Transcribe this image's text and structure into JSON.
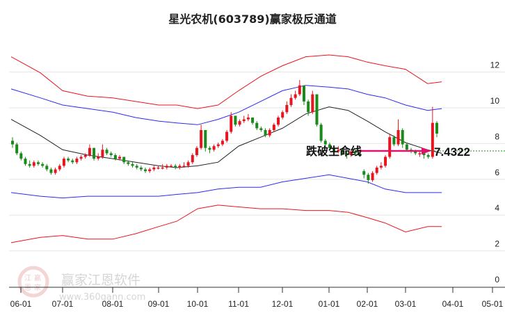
{
  "title": "星光农机(603789)赢家极反通道",
  "watermark": {
    "brand": "赢家江恩软件",
    "url": "www.360gann.com",
    "logo_chars": "江赢恩家"
  },
  "colors": {
    "up": "#e8141e",
    "down": "#1a8a1a",
    "outer_band": "#e8141e",
    "inner_band": "#2a2af0",
    "mid_line": "#222222",
    "arrow": "#e0106e",
    "support_line": "#1a8a1a"
  },
  "chart_data": {
    "type": "candlestick",
    "title": "星光农机(603789)赢家极反通道",
    "x_ticks": [
      "06-01",
      "07-01",
      "08-01",
      "09-01",
      "10-01",
      "11-01",
      "12-01",
      "01-01",
      "02-01",
      "03-01",
      "04-01",
      "05-01"
    ],
    "y_ticks": [
      0,
      2,
      4,
      6,
      8,
      10,
      12
    ],
    "ylim": [
      0,
      13
    ],
    "y_axis_position": "right",
    "grid": "horizontal",
    "candle_fields": [
      "open",
      "close",
      "high",
      "low"
    ],
    "candles": [
      [
        8.0,
        7.8,
        8.2,
        7.6
      ],
      [
        7.8,
        7.3,
        7.9,
        7.2
      ],
      [
        7.3,
        7.0,
        7.4,
        6.9
      ],
      [
        7.0,
        6.7,
        7.1,
        6.6
      ],
      [
        6.7,
        6.6,
        6.9,
        6.5
      ],
      [
        6.6,
        6.8,
        6.9,
        6.5
      ],
      [
        6.8,
        6.7,
        6.9,
        6.6
      ],
      [
        6.7,
        6.6,
        6.8,
        6.5
      ],
      [
        6.6,
        6.4,
        6.7,
        6.3
      ],
      [
        6.4,
        6.2,
        6.5,
        6.1
      ],
      [
        6.2,
        6.4,
        6.5,
        6.1
      ],
      [
        6.4,
        6.6,
        6.7,
        6.3
      ],
      [
        6.6,
        7.0,
        7.1,
        6.5
      ],
      [
        7.0,
        6.9,
        7.1,
        6.8
      ],
      [
        6.9,
        6.8,
        7.0,
        6.7
      ],
      [
        6.8,
        7.0,
        7.1,
        6.7
      ],
      [
        7.0,
        7.1,
        7.2,
        6.9
      ],
      [
        7.1,
        7.2,
        7.3,
        7.0
      ],
      [
        7.2,
        7.6,
        7.8,
        7.1
      ],
      [
        7.6,
        7.0,
        7.6,
        6.9
      ],
      [
        7.0,
        7.1,
        7.3,
        6.9
      ],
      [
        7.1,
        7.5,
        7.8,
        7.0
      ],
      [
        7.5,
        7.3,
        7.6,
        7.2
      ],
      [
        7.3,
        7.2,
        7.4,
        7.1
      ],
      [
        7.2,
        7.0,
        7.3,
        6.9
      ],
      [
        7.0,
        7.1,
        7.2,
        6.9
      ],
      [
        7.1,
        6.8,
        7.1,
        6.7
      ],
      [
        6.8,
        6.7,
        6.9,
        6.6
      ],
      [
        6.7,
        6.6,
        6.8,
        6.5
      ],
      [
        6.6,
        6.5,
        6.7,
        6.4
      ],
      [
        6.5,
        6.4,
        6.6,
        6.3
      ],
      [
        6.4,
        6.3,
        6.5,
        6.2
      ],
      [
        6.3,
        6.4,
        6.5,
        6.2
      ],
      [
        6.4,
        6.5,
        6.6,
        6.3
      ],
      [
        6.5,
        6.5,
        6.6,
        6.4
      ],
      [
        6.5,
        6.5,
        6.7,
        6.4
      ],
      [
        6.5,
        6.6,
        6.7,
        6.4
      ],
      [
        6.6,
        6.6,
        6.7,
        6.5
      ],
      [
        6.6,
        6.5,
        6.7,
        6.4
      ],
      [
        6.5,
        6.6,
        6.7,
        6.4
      ],
      [
        6.6,
        6.6,
        6.8,
        6.5
      ],
      [
        6.6,
        6.8,
        6.9,
        6.5
      ],
      [
        6.8,
        7.2,
        7.3,
        6.7
      ],
      [
        7.2,
        7.6,
        7.7,
        7.1
      ],
      [
        7.6,
        8.6,
        8.9,
        7.5
      ],
      [
        8.6,
        7.6,
        8.6,
        7.4
      ],
      [
        7.6,
        7.5,
        7.7,
        7.3
      ],
      [
        7.5,
        7.7,
        7.8,
        7.4
      ],
      [
        7.7,
        7.8,
        7.9,
        7.6
      ],
      [
        7.8,
        8.0,
        8.1,
        7.7
      ],
      [
        8.0,
        8.5,
        8.6,
        7.9
      ],
      [
        8.5,
        9.4,
        9.6,
        8.4
      ],
      [
        9.4,
        8.9,
        9.4,
        8.8
      ],
      [
        8.9,
        9.1,
        9.2,
        8.8
      ],
      [
        9.1,
        9.2,
        9.4,
        9.0
      ],
      [
        9.2,
        9.3,
        9.5,
        9.1
      ],
      [
        9.3,
        9.0,
        9.3,
        8.9
      ],
      [
        9.0,
        8.7,
        9.1,
        8.6
      ],
      [
        8.7,
        8.6,
        8.8,
        8.5
      ],
      [
        8.6,
        8.3,
        8.7,
        8.2
      ],
      [
        8.3,
        8.6,
        8.7,
        8.2
      ],
      [
        8.6,
        8.9,
        9.0,
        8.5
      ],
      [
        8.9,
        9.3,
        9.4,
        8.8
      ],
      [
        9.3,
        9.6,
        9.7,
        9.2
      ],
      [
        9.6,
        10.0,
        10.2,
        9.5
      ],
      [
        10.0,
        10.4,
        10.6,
        9.9
      ],
      [
        10.4,
        10.6,
        10.8,
        10.3
      ],
      [
        10.6,
        11.1,
        11.4,
        10.5
      ],
      [
        11.1,
        10.2,
        11.1,
        10.0
      ],
      [
        10.2,
        9.6,
        10.3,
        9.4
      ],
      [
        9.6,
        10.6,
        10.8,
        9.5
      ],
      [
        10.6,
        8.9,
        10.6,
        8.8
      ],
      [
        8.9,
        8.0,
        9.0,
        7.9
      ],
      [
        8.0,
        7.8,
        8.1,
        7.6
      ],
      [
        7.8,
        7.6,
        7.9,
        7.5
      ],
      [
        7.6,
        7.4,
        7.7,
        7.3
      ],
      [
        7.4,
        7.5,
        7.7,
        7.3
      ],
      [
        7.5,
        7.3,
        7.6,
        7.2
      ],
      [
        7.3,
        7.2,
        7.4,
        7.0
      ],
      [
        7.2,
        7.4,
        7.5,
        7.1
      ],
      [
        7.4,
        7.3,
        7.5,
        7.2
      ],
      [
        7.3,
        7.2,
        7.4,
        7.1
      ],
      [
        6.3,
        6.1,
        6.4,
        5.9
      ],
      [
        6.1,
        5.8,
        6.2,
        5.6
      ],
      [
        5.8,
        6.2,
        6.3,
        5.7
      ],
      [
        6.2,
        6.5,
        6.6,
        6.1
      ],
      [
        6.5,
        6.6,
        6.8,
        6.4
      ],
      [
        6.6,
        7.1,
        7.2,
        6.5
      ],
      [
        7.1,
        8.2,
        8.4,
        7.0
      ],
      [
        8.2,
        7.8,
        8.3,
        7.7
      ],
      [
        7.8,
        8.6,
        9.2,
        7.7
      ],
      [
        8.6,
        7.8,
        8.7,
        7.6
      ],
      [
        7.8,
        7.5,
        7.9,
        7.4
      ],
      [
        7.5,
        7.4,
        7.6,
        7.3
      ],
      [
        7.4,
        7.3,
        7.5,
        7.2
      ],
      [
        7.3,
        7.3,
        7.4,
        7.1
      ],
      [
        7.3,
        7.2,
        7.4,
        7.0
      ],
      [
        7.2,
        7.1,
        7.3,
        7.0
      ],
      [
        7.1,
        9.0,
        9.9,
        7.0
      ],
      [
        9.0,
        8.4,
        9.1,
        8.2
      ]
    ],
    "line_dates": [
      "05-25",
      "06-15",
      "07-01",
      "07-16",
      "08-01",
      "08-16",
      "09-01",
      "09-15",
      "10-01",
      "10-16",
      "11-01",
      "11-16",
      "12-01",
      "12-16",
      "01-01",
      "01-16",
      "02-01",
      "02-15",
      "03-01",
      "03-15",
      "03-24"
    ],
    "lines": [
      {
        "role": "outer-upper",
        "color": "#e8141e",
        "values": [
          12.7,
          11.8,
          10.8,
          10.5,
          10.4,
          10.2,
          10.0,
          10.0,
          9.8,
          10.0,
          10.8,
          11.6,
          12.2,
          12.7,
          12.8,
          12.7,
          12.4,
          12.2,
          12.0,
          11.2,
          11.3
        ]
      },
      {
        "role": "inner-upper",
        "color": "#2a2af0",
        "values": [
          10.9,
          10.4,
          10.0,
          9.8,
          9.6,
          9.3,
          9.1,
          9.0,
          8.9,
          9.2,
          9.6,
          10.2,
          10.8,
          11.1,
          11.0,
          10.9,
          10.6,
          10.4,
          10.0,
          9.7,
          9.8
        ]
      },
      {
        "role": "middle",
        "color": "#222222",
        "values": [
          9.2,
          8.3,
          7.5,
          7.2,
          7.0,
          6.8,
          6.6,
          6.5,
          6.6,
          6.8,
          7.7,
          8.2,
          8.7,
          9.5,
          9.9,
          9.7,
          9.1,
          8.5,
          7.9,
          7.5,
          7.3
        ]
      },
      {
        "role": "inner-lower",
        "color": "#2a2af0",
        "values": [
          5.1,
          4.9,
          4.8,
          4.9,
          4.9,
          4.9,
          4.9,
          5.0,
          5.1,
          5.3,
          5.4,
          5.4,
          5.7,
          5.9,
          6.1,
          5.9,
          5.7,
          5.3,
          5.1,
          5.1,
          5.1
        ]
      },
      {
        "role": "outer-lower",
        "color": "#e8141e",
        "values": [
          2.3,
          2.6,
          2.7,
          2.5,
          2.5,
          2.8,
          3.2,
          3.5,
          4.2,
          4.4,
          4.3,
          4.2,
          4.2,
          4.1,
          4.1,
          4.0,
          3.7,
          3.4,
          2.9,
          3.2,
          3.2
        ]
      }
    ],
    "annotation": {
      "text": "跌破生命线",
      "value_label": "7.4322",
      "value": 7.4322
    }
  }
}
